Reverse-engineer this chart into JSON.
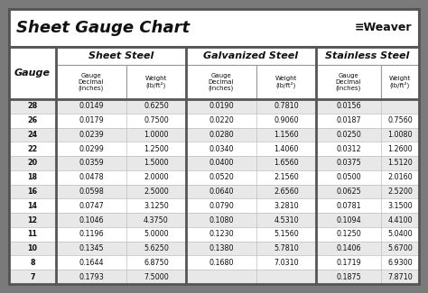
{
  "title": "Sheet Gauge Chart",
  "gauges": [
    28,
    26,
    24,
    22,
    20,
    18,
    16,
    14,
    12,
    11,
    10,
    8,
    7
  ],
  "sheet_steel": {
    "label": "Sheet Steel",
    "decimal": [
      "0.0149",
      "0.0179",
      "0.0239",
      "0.0299",
      "0.0359",
      "0.0478",
      "0.0598",
      "0.0747",
      "0.1046",
      "0.1196",
      "0.1345",
      "0.1644",
      "0.1793"
    ],
    "weight": [
      "0.6250",
      "0.7500",
      "1.0000",
      "1.2500",
      "1.5000",
      "2.0000",
      "2.5000",
      "3.1250",
      "4.3750",
      "5.0000",
      "5.6250",
      "6.8750",
      "7.5000"
    ]
  },
  "galvanized_steel": {
    "label": "Galvanized Steel",
    "decimal": [
      "0.0190",
      "0.0220",
      "0.0280",
      "0.0340",
      "0.0400",
      "0.0520",
      "0.0640",
      "0.0790",
      "0.1080",
      "0.1230",
      "0.1380",
      "0.1680",
      ""
    ],
    "weight": [
      "0.7810",
      "0.9060",
      "1.1560",
      "1.4060",
      "1.6560",
      "2.1560",
      "2.6560",
      "3.2810",
      "4.5310",
      "5.1560",
      "5.7810",
      "7.0310",
      ""
    ]
  },
  "stainless_steel": {
    "label": "Stainless Steel",
    "decimal": [
      "0.0156",
      "0.0187",
      "0.0250",
      "0.0312",
      "0.0375",
      "0.0500",
      "0.0625",
      "0.0781",
      "0.1094",
      "0.1250",
      "0.1406",
      "0.1719",
      "0.1875"
    ],
    "weight": [
      "",
      "0.7560",
      "1.0080",
      "1.2600",
      "1.5120",
      "2.0160",
      "2.5200",
      "3.1500",
      "4.4100",
      "5.0400",
      "5.6700",
      "6.9300",
      "7.8710"
    ]
  },
  "bg_outer": "#7a7a7a",
  "bg_white": "#ffffff",
  "bg_light_gray": "#e8e8e8",
  "bg_mid_gray": "#d0d0d0",
  "border_dark": "#555555",
  "border_light": "#aaaaaa",
  "text_dark": "#111111"
}
